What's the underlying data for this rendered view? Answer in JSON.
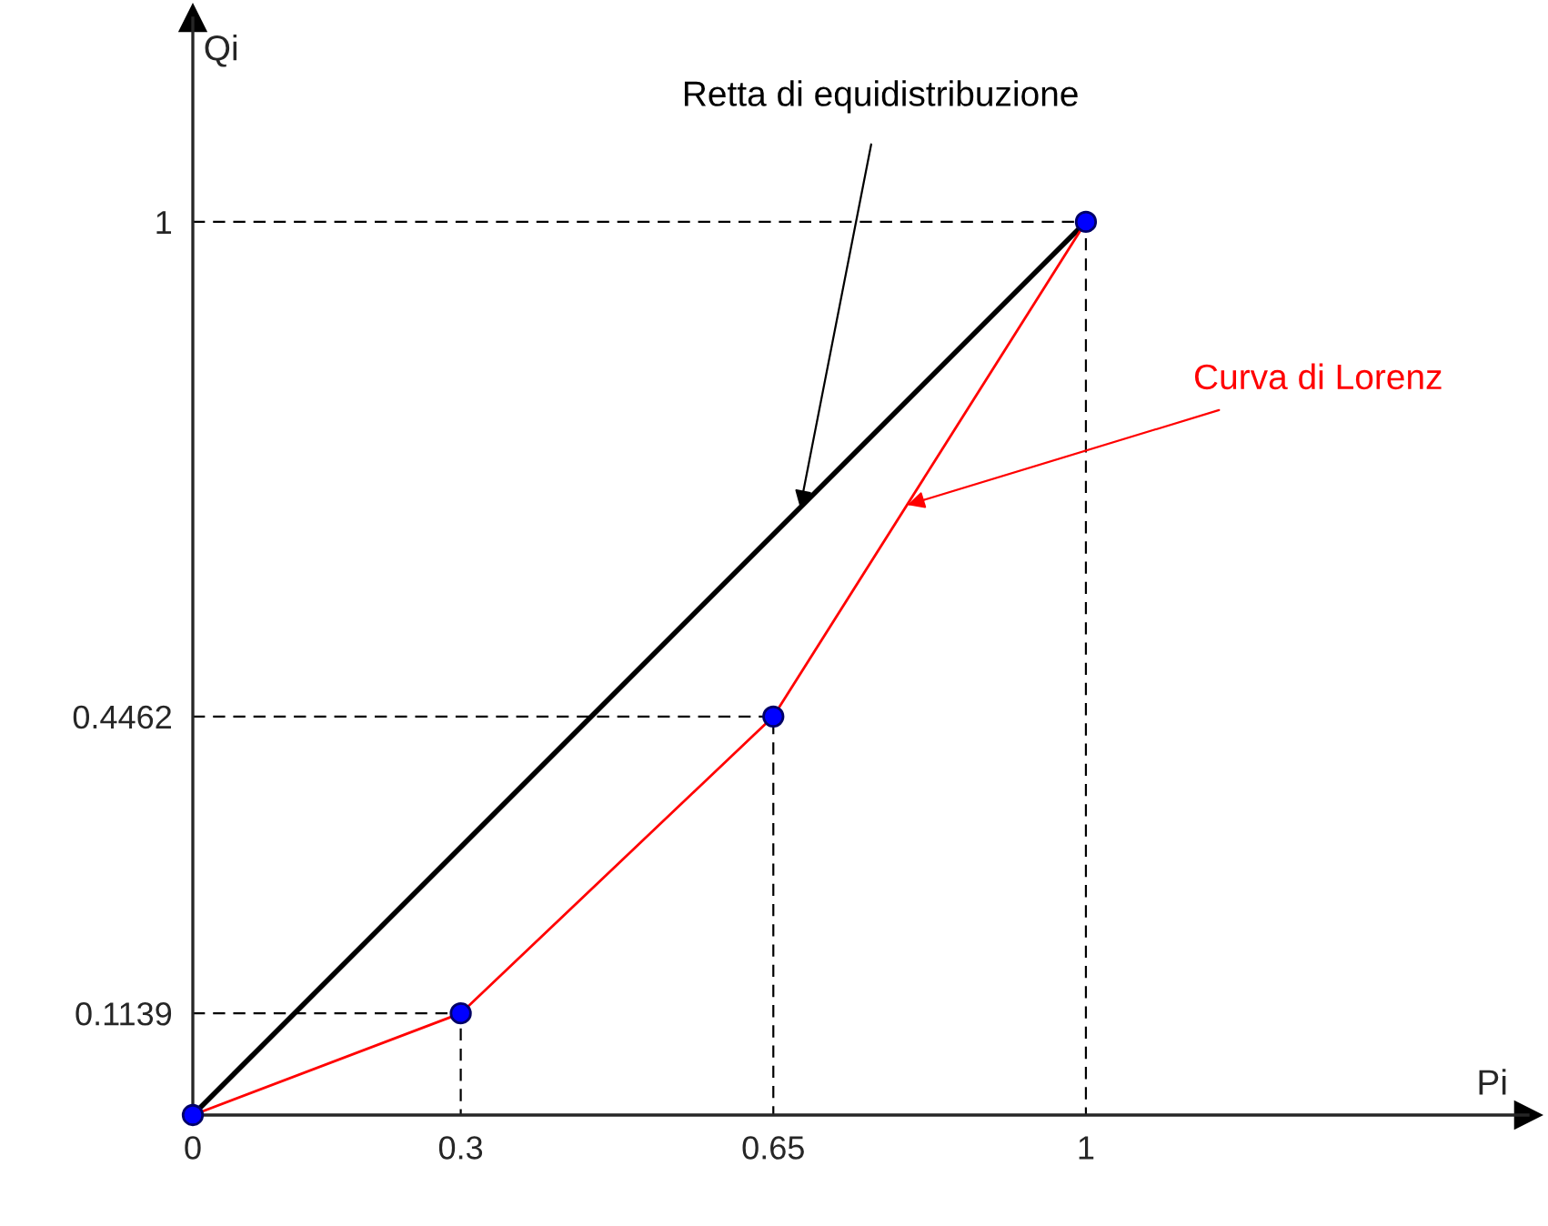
{
  "chart_data": {
    "type": "line",
    "xlabel": "Pi",
    "ylabel": "Qi",
    "series": [
      {
        "color": "#000000",
        "x": [
          0,
          1
        ],
        "values": [
          0,
          1
        ]
      },
      {
        "color": "#ff0000",
        "x": [
          0,
          0.3,
          0.65,
          1
        ],
        "values": [
          0,
          0.1139,
          0.4462,
          1
        ]
      },
      {
        "type": "scatter",
        "color": "#0000ff",
        "marker": "circle",
        "x": [
          0,
          0.3,
          0.65,
          1
        ],
        "values": [
          0,
          0.1139,
          0.4462,
          1
        ]
      },
      {
        "color": "#000000",
        "line_style": "dashed",
        "x": [
          0,
          0.3,
          0.3
        ],
        "values": [
          0.1139,
          0.1139,
          0
        ]
      },
      {
        "color": "#000000",
        "line_style": "dashed",
        "x": [
          0,
          0.65,
          0.65
        ],
        "values": [
          0.4462,
          0.4462,
          0
        ]
      },
      {
        "color": "#000000",
        "line_style": "dashed",
        "x": [
          0,
          1,
          1
        ],
        "values": [
          1,
          1,
          0
        ]
      }
    ],
    "annotations": [
      {
        "text": "Retta di equidistribuzione",
        "x": 0.68,
        "y": 0.68
      },
      {
        "text": "Curva di Lorenz",
        "x": 0.8,
        "y": 0.683
      }
    ],
    "xlim": [
      0,
      1.495
    ],
    "ylim": [
      0,
      1.228
    ],
    "xticks": [
      0,
      0.3,
      0.65,
      1
    ],
    "yticks": [
      0.1139,
      0.4462,
      1
    ]
  }
}
